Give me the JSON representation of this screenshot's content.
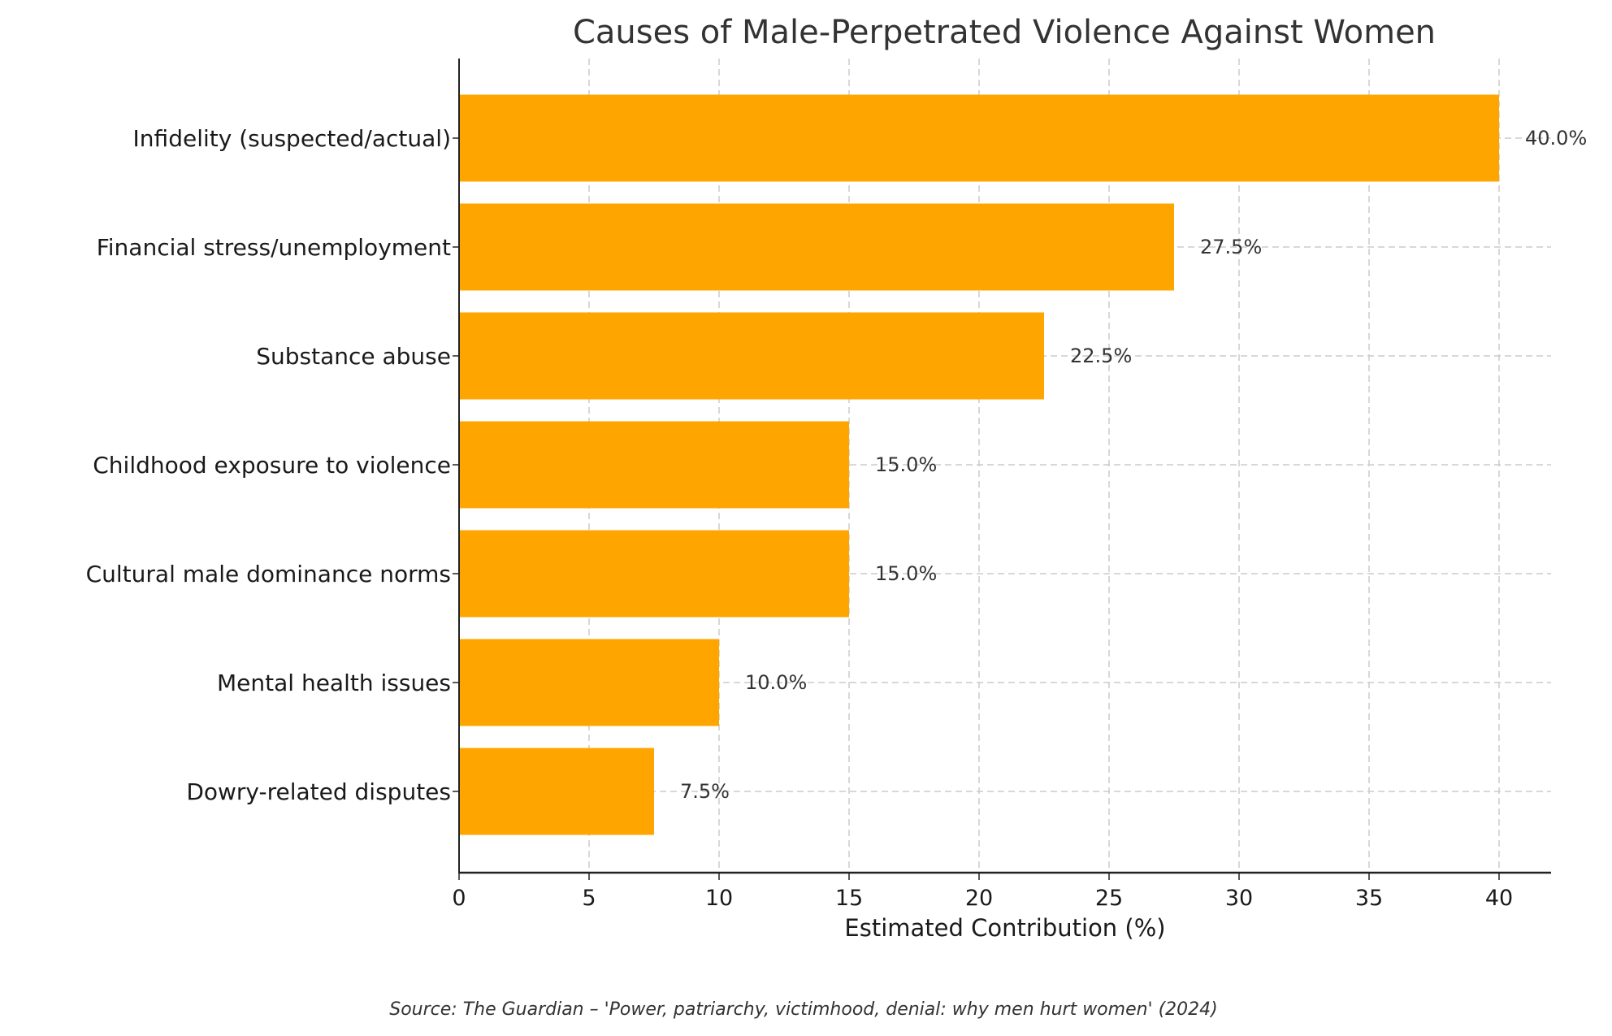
{
  "chart_data": {
    "type": "bar",
    "orientation": "horizontal",
    "title": "Causes of Male-Perpetrated Violence Against Women",
    "xlabel": "Estimated Contribution (%)",
    "ylabel": "",
    "categories": [
      "Infidelity (suspected/actual)",
      "Financial stress/unemployment",
      "Substance abuse",
      "Childhood exposure to violence",
      "Cultural male dominance norms",
      "Mental health issues",
      "Dowry-related disputes"
    ],
    "values": [
      40.0,
      27.5,
      22.5,
      15.0,
      15.0,
      10.0,
      7.5
    ],
    "data_labels": [
      "40.0%",
      "27.5%",
      "22.5%",
      "15.0%",
      "15.0%",
      "10.0%",
      "7.5%"
    ],
    "xlim": [
      0,
      42
    ],
    "xticks": [
      "0",
      "5",
      "10",
      "15",
      "20",
      "25",
      "30",
      "35",
      "40"
    ],
    "grid": true,
    "bar_color": "#FFA500",
    "source": "Source: The Guardian – 'Power, patriarchy, victimhood, denial: why men hurt women' (2024)"
  }
}
